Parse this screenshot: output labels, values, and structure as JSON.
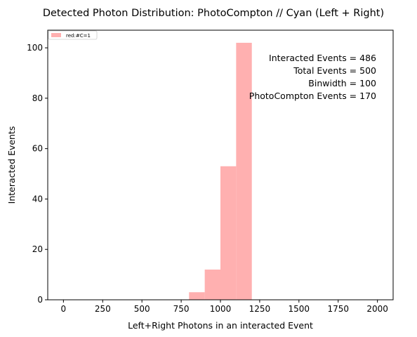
{
  "chart_data": {
    "type": "bar",
    "title": "Detected Photon Distribution: PhotoCompton // Cyan (Left + Right)",
    "xlabel": "Left+Right Photons in an interacted Event",
    "ylabel": "Interacted Events",
    "xlim": [
      -100,
      2100
    ],
    "ylim": [
      0,
      107
    ],
    "xticks": [
      0,
      250,
      500,
      750,
      1000,
      1250,
      1500,
      1750,
      2000
    ],
    "yticks": [
      0,
      20,
      40,
      60,
      80,
      100
    ],
    "bar_color": "#ffb0b0",
    "grid": false,
    "legend_position": "top-left",
    "legend": [
      "red:#C=1"
    ],
    "bins": [
      {
        "x0": 800,
        "x1": 900,
        "count": 3
      },
      {
        "x0": 900,
        "x1": 1000,
        "count": 12
      },
      {
        "x0": 1000,
        "x1": 1100,
        "count": 53
      },
      {
        "x0": 1100,
        "x1": 1200,
        "count": 102
      }
    ],
    "annotations": [
      "Interacted Events = 486",
      "Total Events = 500",
      "Binwidth = 100",
      "PhotoCompton Events = 170"
    ]
  }
}
